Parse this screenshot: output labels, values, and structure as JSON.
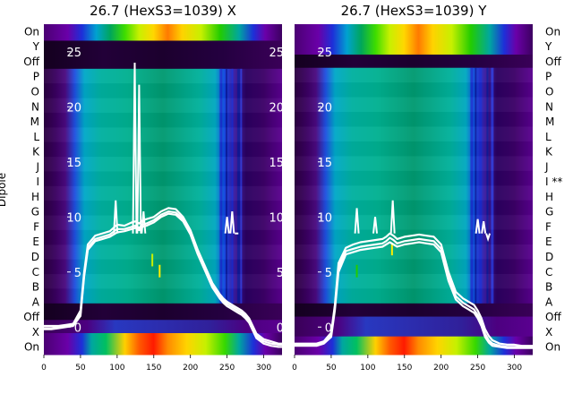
{
  "chart_data": [
    {
      "type": "heatmap",
      "title": "26.7 (HexS3=1039) X",
      "ylabel": "Dipole",
      "dipole_labels": [
        "On",
        "X",
        "Off",
        "A",
        "B",
        "C",
        "D",
        "E",
        "F",
        "G",
        "H",
        "I",
        "J",
        "K",
        "L",
        "M",
        "N",
        "O",
        "P",
        "Off",
        "Y",
        "On"
      ],
      "x_ticks": [
        0,
        50,
        100,
        150,
        200,
        250,
        300
      ],
      "xlim": [
        0,
        325
      ],
      "y_ticks": [
        0,
        5,
        10,
        15,
        20,
        25
      ],
      "ylim": [
        -2.5,
        27.5
      ],
      "colormap": "nipy_spectral",
      "lines": [
        {
          "x": [
            0,
            10,
            20,
            30,
            40,
            50,
            55,
            60,
            70,
            80,
            90,
            100,
            110,
            120,
            125,
            130,
            135,
            140,
            150,
            160,
            170,
            180,
            190,
            200,
            210,
            220,
            230,
            240,
            245,
            250,
            255,
            260,
            265,
            270,
            275,
            280,
            290,
            300,
            310,
            320,
            325
          ],
          "y": [
            0.1,
            0.1,
            0.1,
            0.2,
            0.3,
            1.5,
            5,
            7.5,
            8.3,
            8.5,
            8.7,
            9.3,
            9.2,
            9.5,
            9.6,
            9.4,
            9.7,
            9.8,
            10.0,
            10.5,
            10.8,
            10.7,
            10.0,
            8.8,
            7.0,
            5.5,
            4.0,
            3.0,
            2.6,
            2.3,
            2.1,
            1.9,
            1.7,
            1.5,
            1.2,
            0.8,
            -0.6,
            -1.1,
            -1.3,
            -1.5,
            -1.5
          ]
        },
        {
          "x": [
            0,
            10,
            20,
            30,
            40,
            50,
            55,
            60,
            70,
            80,
            90,
            100,
            110,
            120,
            125,
            130,
            135,
            140,
            150,
            160,
            170,
            180,
            190,
            200,
            210,
            220,
            230,
            240,
            245,
            250,
            255,
            260,
            265,
            270,
            275,
            280,
            290,
            300,
            310,
            320,
            325
          ],
          "y": [
            -0.1,
            -0.1,
            0,
            0.1,
            0.2,
            1.2,
            4.8,
            7.2,
            8.0,
            8.2,
            8.4,
            8.9,
            8.9,
            9.1,
            9.2,
            9.0,
            9.3,
            9.4,
            9.7,
            10.2,
            10.5,
            10.4,
            9.8,
            8.6,
            6.8,
            5.3,
            3.8,
            2.8,
            2.4,
            2.1,
            1.9,
            1.7,
            1.5,
            1.3,
            1.0,
            0.6,
            -0.8,
            -1.3,
            -1.5,
            -1.6,
            -1.6
          ]
        },
        {
          "x": [
            0,
            10,
            20,
            30,
            40,
            50,
            55,
            60,
            70,
            80,
            90,
            100,
            110,
            120,
            125,
            130,
            135,
            140,
            150,
            160,
            170,
            180,
            190,
            200,
            210,
            220,
            230,
            240,
            245,
            250,
            255,
            260,
            265,
            270,
            275,
            280,
            290,
            300,
            310,
            320,
            325
          ],
          "y": [
            -0.2,
            -0.2,
            -0.1,
            0,
            0.1,
            1.0,
            4.6,
            7.0,
            7.8,
            8.0,
            8.2,
            8.6,
            8.7,
            8.9,
            9.0,
            8.8,
            9.1,
            9.2,
            9.5,
            10.0,
            10.3,
            10.2,
            9.6,
            8.4,
            6.6,
            5.1,
            3.6,
            2.6,
            2.2,
            1.9,
            1.7,
            1.5,
            1.3,
            1.1,
            0.8,
            0.4,
            -1.0,
            -1.5,
            -1.7,
            -1.8,
            -1.8
          ]
        }
      ],
      "spikes": [
        {
          "x": 98,
          "y": 11.5
        },
        {
          "x": 124,
          "y": 24.0
        },
        {
          "x": 130,
          "y": 22.0
        },
        {
          "x": 136,
          "y": 10.5
        },
        {
          "x": 250,
          "y": 10.0
        },
        {
          "x": 257,
          "y": 10.5
        },
        {
          "x": 263,
          "y": 8.5
        }
      ]
    },
    {
      "type": "heatmap",
      "title": "26.7 (HexS3=1039) Y",
      "dipole_labels": [
        "On",
        "X",
        "Off",
        "A",
        "B",
        "C",
        "D",
        "E",
        "F",
        "G",
        "H",
        "I **",
        "J",
        "K",
        "L",
        "M",
        "N",
        "O",
        "P",
        "Off",
        "Y",
        "On"
      ],
      "x_ticks": [
        0,
        50,
        100,
        150,
        200,
        250,
        300
      ],
      "xlim": [
        0,
        325
      ],
      "y_ticks": [
        0,
        5,
        10,
        15,
        20,
        25
      ],
      "ylim": [
        -2.5,
        27.5
      ],
      "colormap": "nipy_spectral",
      "lines": [
        {
          "x": [
            0,
            10,
            20,
            30,
            40,
            50,
            55,
            60,
            70,
            80,
            90,
            100,
            110,
            120,
            125,
            130,
            135,
            140,
            150,
            160,
            170,
            180,
            190,
            200,
            210,
            220,
            230,
            235,
            240,
            245,
            250,
            255,
            260,
            265,
            270,
            280,
            290,
            300,
            310,
            320,
            325
          ],
          "y": [
            -1.5,
            -1.5,
            -1.5,
            -1.5,
            -1.3,
            -0.5,
            2.0,
            5.8,
            7.2,
            7.5,
            7.7,
            7.8,
            7.9,
            8.0,
            8.2,
            8.5,
            8.3,
            8.0,
            8.2,
            8.3,
            8.4,
            8.3,
            8.2,
            7.5,
            5.0,
            3.2,
            2.6,
            2.4,
            2.2,
            2.0,
            1.5,
            0.8,
            -0.2,
            -0.8,
            -1.2,
            -1.5,
            -1.6,
            -1.6,
            -1.7,
            -1.7,
            -1.7
          ]
        },
        {
          "x": [
            0,
            10,
            20,
            30,
            40,
            50,
            55,
            60,
            70,
            80,
            90,
            100,
            110,
            120,
            125,
            130,
            135,
            140,
            150,
            160,
            170,
            180,
            190,
            200,
            210,
            220,
            230,
            235,
            240,
            245,
            250,
            255,
            260,
            265,
            270,
            280,
            290,
            300,
            310,
            320,
            325
          ],
          "y": [
            -1.6,
            -1.6,
            -1.6,
            -1.6,
            -1.4,
            -0.7,
            1.8,
            5.4,
            6.9,
            7.1,
            7.3,
            7.4,
            7.5,
            7.6,
            7.8,
            8.1,
            7.9,
            7.6,
            7.8,
            7.9,
            8.0,
            7.9,
            7.8,
            7.1,
            4.6,
            2.8,
            2.2,
            2.0,
            1.8,
            1.6,
            1.1,
            0.4,
            -0.6,
            -1.2,
            -1.5,
            -1.7,
            -1.8,
            -1.8,
            -1.8,
            -1.8,
            -1.8
          ]
        },
        {
          "x": [
            0,
            10,
            20,
            30,
            40,
            50,
            55,
            60,
            70,
            80,
            90,
            100,
            110,
            120,
            125,
            130,
            135,
            140,
            150,
            160,
            170,
            180,
            190,
            200,
            210,
            220,
            230,
            235,
            240,
            245,
            250,
            255,
            260,
            265,
            270,
            280,
            290,
            300,
            310,
            320,
            325
          ],
          "y": [
            -1.7,
            -1.7,
            -1.7,
            -1.7,
            -1.5,
            -0.9,
            1.5,
            5.0,
            6.6,
            6.8,
            7.0,
            7.1,
            7.2,
            7.3,
            7.5,
            7.7,
            7.5,
            7.3,
            7.5,
            7.6,
            7.7,
            7.6,
            7.5,
            6.8,
            4.2,
            2.5,
            1.9,
            1.7,
            1.5,
            1.3,
            0.8,
            0.1,
            -0.9,
            -1.4,
            -1.7,
            -1.8,
            -1.9,
            -1.9,
            -1.9,
            -1.9,
            -1.9
          ]
        }
      ],
      "spikes": [
        {
          "x": 85,
          "y": 10.8
        },
        {
          "x": 110,
          "y": 10.0
        },
        {
          "x": 134,
          "y": 11.5
        },
        {
          "x": 250,
          "y": 9.8
        },
        {
          "x": 258,
          "y": 9.6
        },
        {
          "x": 264,
          "y": 8.0
        }
      ]
    }
  ]
}
